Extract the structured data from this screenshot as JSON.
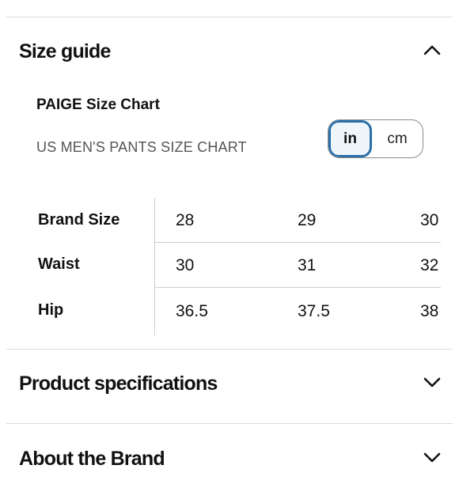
{
  "size_guide": {
    "title": "Size guide",
    "brand_chart_title": "PAIGE Size Chart",
    "chart_subtitle": "US MEN'S PANTS SIZE CHART",
    "units": {
      "in_label": "in",
      "cm_label": "cm",
      "selected": "in"
    },
    "table": {
      "rows": [
        {
          "label": "Brand Size",
          "values": [
            "28",
            "29",
            "30"
          ]
        },
        {
          "label": "Waist",
          "values": [
            "30",
            "31",
            "32"
          ]
        },
        {
          "label": "Hip",
          "values": [
            "36.5",
            "37.5",
            "38"
          ]
        }
      ]
    }
  },
  "product_specifications": {
    "title": "Product specifications"
  },
  "about_brand": {
    "title": "About the Brand"
  },
  "colors": {
    "accent": "#2a6fa8",
    "selected_bg": "#eef6fc",
    "divider": "#dcdcdc"
  }
}
